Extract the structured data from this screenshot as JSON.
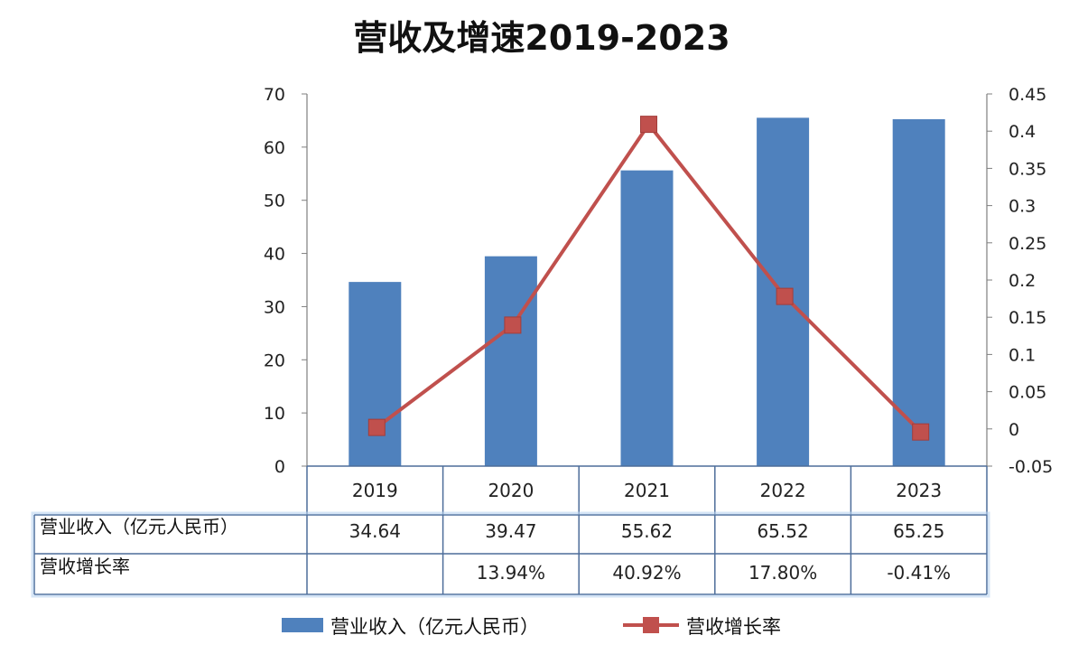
{
  "chart_data": {
    "type": "bar",
    "title": "营收及增速2019-2023",
    "categories": [
      "2019",
      "2020",
      "2021",
      "2022",
      "2023"
    ],
    "series": [
      {
        "name": "营业收入（亿元人民币）",
        "type": "bar",
        "axis": "left",
        "values": [
          34.64,
          39.47,
          55.62,
          65.52,
          65.25
        ],
        "labels": [
          "34.64",
          "39.47",
          "55.62",
          "65.52",
          "65.25"
        ],
        "color": "#4f81bd"
      },
      {
        "name": "营收增长率",
        "type": "line",
        "axis": "right",
        "values": [
          0.002,
          0.1394,
          0.4092,
          0.178,
          -0.0041
        ],
        "labels": [
          "",
          "13.94%",
          "40.92%",
          "17.80%",
          "-0.41%"
        ],
        "color": "#c0504d"
      }
    ],
    "y_left": {
      "ylim": [
        0,
        70
      ],
      "ticks": [
        "0",
        "10",
        "20",
        "30",
        "40",
        "50",
        "60",
        "70"
      ]
    },
    "y_right": {
      "ylim": [
        -0.05,
        0.45
      ],
      "ticks": [
        "-0.05",
        "0",
        "0.05",
        "0.1",
        "0.15",
        "0.2",
        "0.25",
        "0.3",
        "0.35",
        "0.4",
        "0.45"
      ]
    },
    "grid": false,
    "data_table": true,
    "legend_position": "bottom"
  }
}
